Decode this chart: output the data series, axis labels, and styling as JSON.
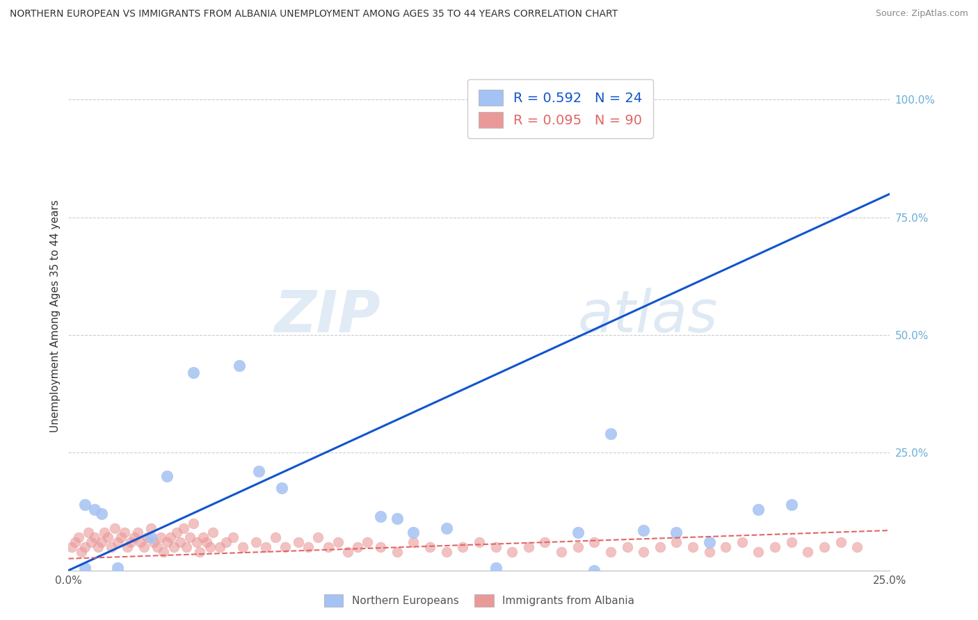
{
  "title": "NORTHERN EUROPEAN VS IMMIGRANTS FROM ALBANIA UNEMPLOYMENT AMONG AGES 35 TO 44 YEARS CORRELATION CHART",
  "source": "Source: ZipAtlas.com",
  "ylabel": "Unemployment Among Ages 35 to 44 years",
  "xlim": [
    0,
    0.25
  ],
  "ylim": [
    0,
    1.08
  ],
  "blue_R": 0.592,
  "blue_N": 24,
  "pink_R": 0.095,
  "pink_N": 90,
  "blue_color": "#a4c2f4",
  "pink_color": "#ea9999",
  "blue_line_color": "#1155cc",
  "pink_line_color": "#e06666",
  "watermark_zip": "ZIP",
  "watermark_atlas": "atlas",
  "blue_line_x": [
    0.0,
    0.25
  ],
  "blue_line_y": [
    0.0,
    0.8
  ],
  "pink_line_x": [
    0.0,
    0.25
  ],
  "pink_line_y": [
    0.025,
    0.085
  ],
  "blue_scatter_x": [
    0.038,
    0.052,
    0.058,
    0.065,
    0.005,
    0.008,
    0.01,
    0.015,
    0.095,
    0.115,
    0.13,
    0.16,
    0.185,
    0.21,
    0.165,
    0.1,
    0.105,
    0.175,
    0.195,
    0.155,
    0.005,
    0.22,
    0.025,
    0.03
  ],
  "blue_scatter_y": [
    0.42,
    0.435,
    0.21,
    0.175,
    0.14,
    0.13,
    0.12,
    0.005,
    0.115,
    0.09,
    0.005,
    0.0,
    0.08,
    0.13,
    0.29,
    0.11,
    0.08,
    0.085,
    0.06,
    0.08,
    0.005,
    0.14,
    0.07,
    0.2
  ],
  "pink_scatter_x": [
    0.001,
    0.002,
    0.003,
    0.004,
    0.005,
    0.006,
    0.007,
    0.008,
    0.009,
    0.01,
    0.011,
    0.012,
    0.013,
    0.014,
    0.015,
    0.016,
    0.017,
    0.018,
    0.019,
    0.02,
    0.021,
    0.022,
    0.023,
    0.024,
    0.025,
    0.026,
    0.027,
    0.028,
    0.029,
    0.03,
    0.031,
    0.032,
    0.033,
    0.034,
    0.035,
    0.036,
    0.037,
    0.038,
    0.039,
    0.04,
    0.041,
    0.042,
    0.043,
    0.044,
    0.046,
    0.048,
    0.05,
    0.053,
    0.057,
    0.06,
    0.063,
    0.066,
    0.07,
    0.073,
    0.076,
    0.079,
    0.082,
    0.085,
    0.088,
    0.091,
    0.095,
    0.1,
    0.105,
    0.11,
    0.115,
    0.12,
    0.125,
    0.13,
    0.135,
    0.14,
    0.145,
    0.15,
    0.155,
    0.16,
    0.165,
    0.17,
    0.175,
    0.18,
    0.185,
    0.19,
    0.195,
    0.2,
    0.205,
    0.21,
    0.215,
    0.22,
    0.225,
    0.23,
    0.235,
    0.24
  ],
  "pink_scatter_y": [
    0.05,
    0.06,
    0.07,
    0.04,
    0.05,
    0.08,
    0.06,
    0.07,
    0.05,
    0.06,
    0.08,
    0.07,
    0.05,
    0.09,
    0.06,
    0.07,
    0.08,
    0.05,
    0.06,
    0.07,
    0.08,
    0.06,
    0.05,
    0.07,
    0.09,
    0.06,
    0.05,
    0.07,
    0.04,
    0.06,
    0.07,
    0.05,
    0.08,
    0.06,
    0.09,
    0.05,
    0.07,
    0.1,
    0.06,
    0.04,
    0.07,
    0.06,
    0.05,
    0.08,
    0.05,
    0.06,
    0.07,
    0.05,
    0.06,
    0.05,
    0.07,
    0.05,
    0.06,
    0.05,
    0.07,
    0.05,
    0.06,
    0.04,
    0.05,
    0.06,
    0.05,
    0.04,
    0.06,
    0.05,
    0.04,
    0.05,
    0.06,
    0.05,
    0.04,
    0.05,
    0.06,
    0.04,
    0.05,
    0.06,
    0.04,
    0.05,
    0.04,
    0.05,
    0.06,
    0.05,
    0.04,
    0.05,
    0.06,
    0.04,
    0.05,
    0.06,
    0.04,
    0.05,
    0.06,
    0.05
  ]
}
